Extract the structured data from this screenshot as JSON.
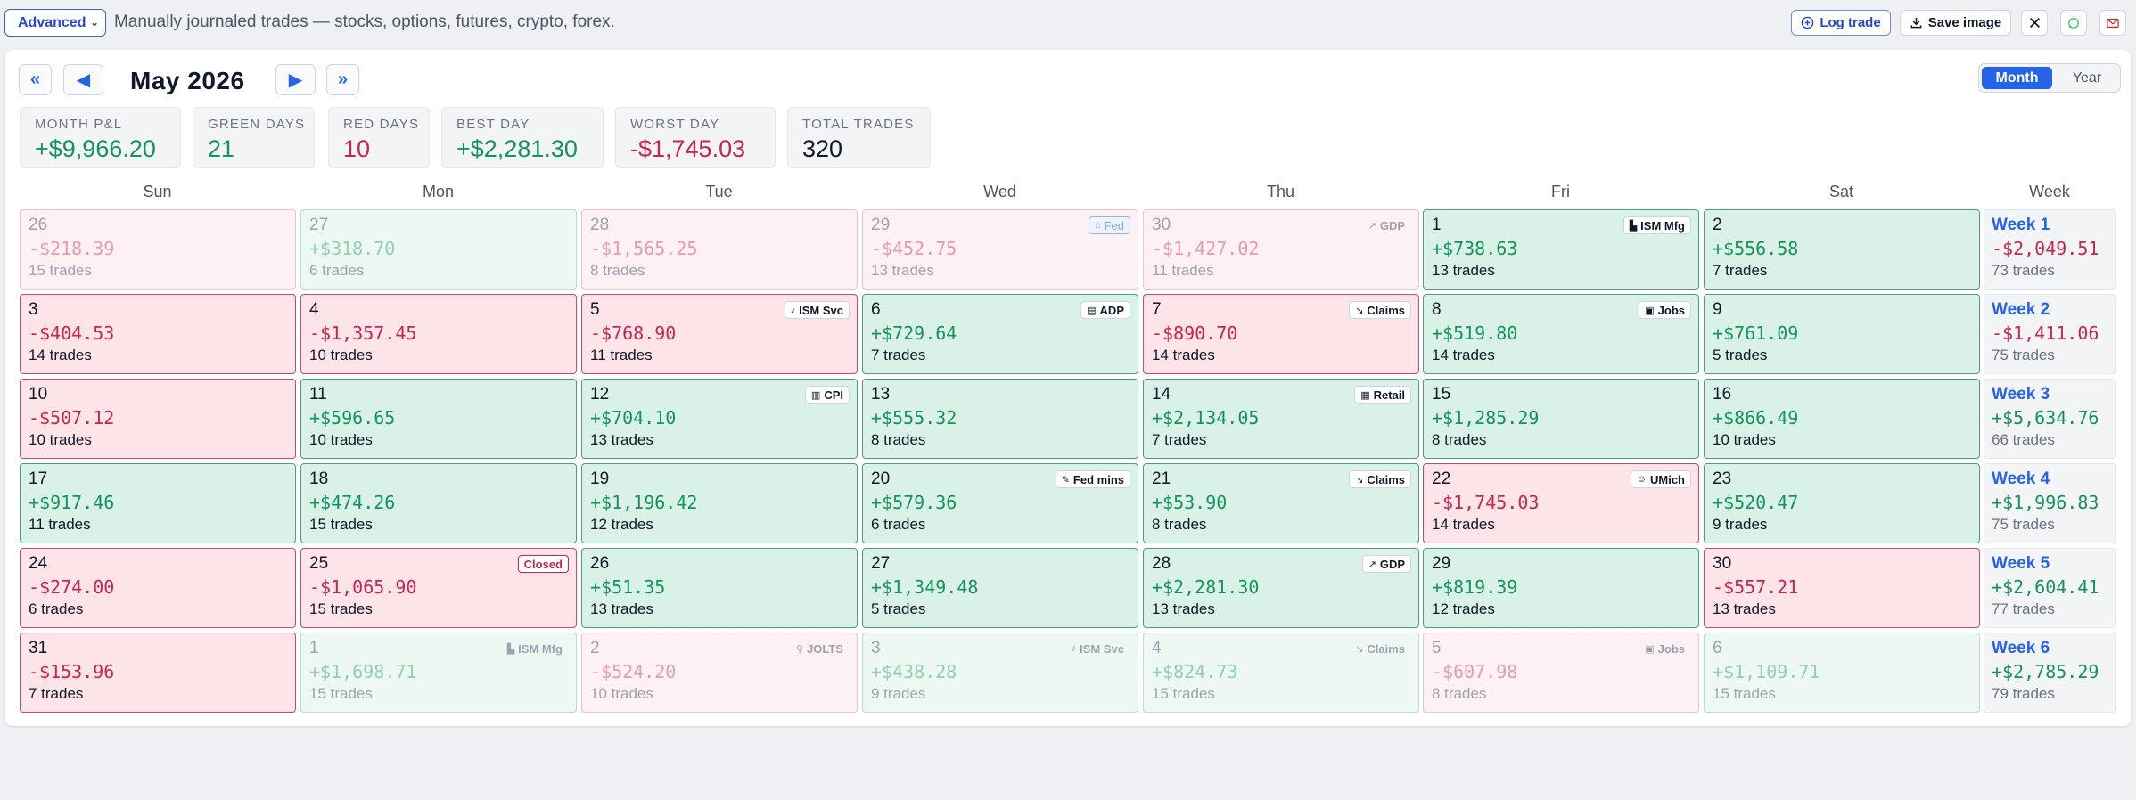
{
  "toolbar": {
    "mode_value": "Advanced",
    "description": "Manually journaled trades — stocks, options, futures, crypto, forex.",
    "log_trade_label": "Log trade",
    "save_image_label": "Save image"
  },
  "nav": {
    "first": "«",
    "prev": "◀",
    "title": "May 2026",
    "next": "▶",
    "last": "»"
  },
  "view": {
    "month_label": "Month",
    "year_label": "Year",
    "selected": "Month"
  },
  "stats": [
    {
      "label": "MONTH P&L",
      "value": "+$9,966.20",
      "color": "#15935f"
    },
    {
      "label": "GREEN DAYS",
      "value": "21",
      "color": "#15935f"
    },
    {
      "label": "RED DAYS",
      "value": "10",
      "color": "#c8254f"
    },
    {
      "label": "BEST DAY",
      "value": "+$2,281.30",
      "color": "#15935f"
    },
    {
      "label": "WORST DAY",
      "value": "-$1,745.03",
      "color": "#c8254f"
    },
    {
      "label": "TOTAL TRADES",
      "value": "320",
      "color": "#111827"
    }
  ],
  "weekdays": [
    "Sun",
    "Mon",
    "Tue",
    "Wed",
    "Thu",
    "Fri",
    "Sat",
    "Week"
  ],
  "weeks": [
    {
      "label": "Week 1",
      "pnl": "-$2,049.51",
      "trades": "73 trades",
      "days": [
        {
          "day": "26",
          "pnl": "-$218.39",
          "trades": "15 trades",
          "tone": "red",
          "outside": true
        },
        {
          "day": "27",
          "pnl": "+$318.70",
          "trades": "6 trades",
          "tone": "green",
          "outside": true
        },
        {
          "day": "28",
          "pnl": "-$1,565.25",
          "trades": "8 trades",
          "tone": "red",
          "outside": true
        },
        {
          "day": "29",
          "pnl": "-$452.75",
          "trades": "13 trades",
          "tone": "red",
          "outside": true,
          "badge": "Fed",
          "badge_icon": "building-icon",
          "badge_style": "fed"
        },
        {
          "day": "30",
          "pnl": "-$1,427.02",
          "trades": "11 trades",
          "tone": "red",
          "outside": true,
          "badge": "GDP",
          "badge_icon": "trend-up-icon",
          "badge_style": "muted"
        },
        {
          "day": "1",
          "pnl": "+$738.63",
          "trades": "13 trades",
          "tone": "green",
          "badge": "ISM Mfg",
          "badge_icon": "factory-icon"
        },
        {
          "day": "2",
          "pnl": "+$556.58",
          "trades": "7 trades",
          "tone": "green"
        }
      ]
    },
    {
      "label": "Week 2",
      "pnl": "-$1,411.06",
      "trades": "75 trades",
      "days": [
        {
          "day": "3",
          "pnl": "-$404.53",
          "trades": "14 trades",
          "tone": "red"
        },
        {
          "day": "4",
          "pnl": "-$1,357.45",
          "trades": "10 trades",
          "tone": "red"
        },
        {
          "day": "5",
          "pnl": "-$768.90",
          "trades": "11 trades",
          "tone": "red",
          "badge": "ISM Svc",
          "badge_icon": "bell-icon"
        },
        {
          "day": "6",
          "pnl": "+$729.64",
          "trades": "7 trades",
          "tone": "green",
          "badge": "ADP",
          "badge_icon": "document-icon"
        },
        {
          "day": "7",
          "pnl": "-$890.70",
          "trades": "14 trades",
          "tone": "red",
          "badge": "Claims",
          "badge_icon": "trend-down-icon"
        },
        {
          "day": "8",
          "pnl": "+$519.80",
          "trades": "14 trades",
          "tone": "green",
          "badge": "Jobs",
          "badge_icon": "briefcase-icon"
        },
        {
          "day": "9",
          "pnl": "+$761.09",
          "trades": "5 trades",
          "tone": "green"
        }
      ]
    },
    {
      "label": "Week 3",
      "pnl": "+$5,634.76",
      "trades": "66 trades",
      "days": [
        {
          "day": "10",
          "pnl": "-$507.12",
          "trades": "10 trades",
          "tone": "red"
        },
        {
          "day": "11",
          "pnl": "+$596.65",
          "trades": "10 trades",
          "tone": "green"
        },
        {
          "day": "12",
          "pnl": "+$704.10",
          "trades": "13 trades",
          "tone": "green",
          "badge": "CPI",
          "badge_icon": "chart-icon"
        },
        {
          "day": "13",
          "pnl": "+$555.32",
          "trades": "8 trades",
          "tone": "green"
        },
        {
          "day": "14",
          "pnl": "+$2,134.05",
          "trades": "7 trades",
          "tone": "green",
          "badge": "Retail",
          "badge_icon": "receipt-icon"
        },
        {
          "day": "15",
          "pnl": "+$1,285.29",
          "trades": "8 trades",
          "tone": "green"
        },
        {
          "day": "16",
          "pnl": "+$866.49",
          "trades": "10 trades",
          "tone": "green"
        }
      ]
    },
    {
      "label": "Week 4",
      "pnl": "+$1,996.83",
      "trades": "75 trades",
      "days": [
        {
          "day": "17",
          "pnl": "+$917.46",
          "trades": "11 trades",
          "tone": "green"
        },
        {
          "day": "18",
          "pnl": "+$474.26",
          "trades": "15 trades",
          "tone": "green"
        },
        {
          "day": "19",
          "pnl": "+$1,196.42",
          "trades": "12 trades",
          "tone": "green"
        },
        {
          "day": "20",
          "pnl": "+$579.36",
          "trades": "6 trades",
          "tone": "green",
          "badge": "Fed mins",
          "badge_icon": "notes-icon"
        },
        {
          "day": "21",
          "pnl": "+$53.90",
          "trades": "8 trades",
          "tone": "green",
          "badge": "Claims",
          "badge_icon": "trend-down-icon"
        },
        {
          "day": "22",
          "pnl": "-$1,745.03",
          "trades": "14 trades",
          "tone": "red",
          "badge": "UMich",
          "badge_icon": "smile-icon"
        },
        {
          "day": "23",
          "pnl": "+$520.47",
          "trades": "9 trades",
          "tone": "green"
        }
      ]
    },
    {
      "label": "Week 5",
      "pnl": "+$2,604.41",
      "trades": "77 trades",
      "days": [
        {
          "day": "24",
          "pnl": "-$274.00",
          "trades": "6 trades",
          "tone": "red"
        },
        {
          "day": "25",
          "pnl": "-$1,065.90",
          "trades": "15 trades",
          "tone": "red",
          "badge": "Closed",
          "badge_style": "closed"
        },
        {
          "day": "26",
          "pnl": "+$51.35",
          "trades": "13 trades",
          "tone": "green"
        },
        {
          "day": "27",
          "pnl": "+$1,349.48",
          "trades": "5 trades",
          "tone": "green"
        },
        {
          "day": "28",
          "pnl": "+$2,281.30",
          "trades": "13 trades",
          "tone": "green",
          "badge": "GDP",
          "badge_icon": "trend-up-icon"
        },
        {
          "day": "29",
          "pnl": "+$819.39",
          "trades": "12 trades",
          "tone": "green"
        },
        {
          "day": "30",
          "pnl": "-$557.21",
          "trades": "13 trades",
          "tone": "red"
        }
      ]
    },
    {
      "label": "Week 6",
      "pnl": "+$2,785.29",
      "trades": "79 trades",
      "days": [
        {
          "day": "31",
          "pnl": "-$153.96",
          "trades": "7 trades",
          "tone": "red"
        },
        {
          "day": "1",
          "pnl": "+$1,698.71",
          "trades": "15 trades",
          "tone": "green",
          "outside": true,
          "badge": "ISM Mfg",
          "badge_icon": "factory-icon",
          "badge_style": "muted"
        },
        {
          "day": "2",
          "pnl": "-$524.20",
          "trades": "10 trades",
          "tone": "red",
          "outside": true,
          "badge": "JOLTS",
          "badge_icon": "search-icon",
          "badge_style": "muted"
        },
        {
          "day": "3",
          "pnl": "+$438.28",
          "trades": "9 trades",
          "tone": "green",
          "outside": true,
          "badge": "ISM Svc",
          "badge_icon": "bell-icon",
          "badge_style": "muted"
        },
        {
          "day": "4",
          "pnl": "+$824.73",
          "trades": "15 trades",
          "tone": "green",
          "outside": true,
          "badge": "Claims",
          "badge_icon": "trend-down-icon",
          "badge_style": "muted"
        },
        {
          "day": "5",
          "pnl": "-$607.98",
          "trades": "8 trades",
          "tone": "red",
          "outside": true,
          "badge": "Jobs",
          "badge_icon": "briefcase-icon",
          "badge_style": "muted"
        },
        {
          "day": "6",
          "pnl": "+$1,109.71",
          "trades": "15 trades",
          "tone": "green",
          "outside": true
        }
      ]
    }
  ]
}
